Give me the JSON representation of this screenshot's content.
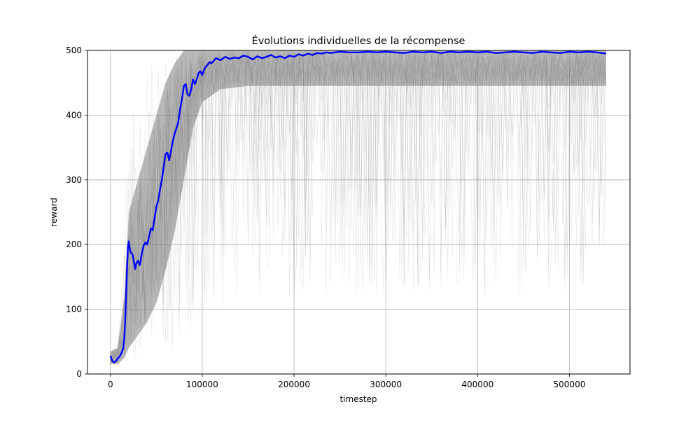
{
  "chart_data": {
    "type": "line",
    "title": "Évolutions individuelles de la récompense",
    "xlabel": "timestep",
    "ylabel": "reward",
    "xlim": [
      -25000,
      566000
    ],
    "ylim": [
      0,
      500
    ],
    "x_ticks": [
      0,
      100000,
      200000,
      300000,
      400000,
      500000
    ],
    "x_tick_labels": [
      "0",
      "100000",
      "200000",
      "300000",
      "400000",
      "500000"
    ],
    "y_ticks": [
      0,
      100,
      200,
      300,
      400,
      500
    ],
    "y_tick_labels": [
      "0",
      "100",
      "200",
      "300",
      "400",
      "500"
    ],
    "grid": true,
    "series": [
      {
        "role": "individual runs",
        "color": "#808080",
        "band": {
          "x": [
            0,
            8000,
            15000,
            20000,
            30000,
            40000,
            50000,
            60000,
            70000,
            80000,
            90000,
            100000,
            120000,
            150000,
            200000,
            300000,
            400000,
            540000
          ],
          "upper": [
            40,
            45,
            200,
            400,
            440,
            470,
            490,
            500,
            500,
            500,
            500,
            500,
            500,
            500,
            500,
            500,
            500,
            500
          ],
          "dense_upper": [
            35,
            40,
            120,
            250,
            300,
            350,
            400,
            450,
            480,
            500,
            500,
            500,
            500,
            500,
            500,
            500,
            500,
            500
          ],
          "dense_lower": [
            15,
            15,
            25,
            40,
            60,
            80,
            110,
            160,
            220,
            300,
            380,
            420,
            440,
            445,
            445,
            445,
            445,
            445
          ],
          "lower": [
            10,
            10,
            15,
            15,
            15,
            20,
            20,
            25,
            30,
            40,
            60,
            80,
            100,
            120,
            120,
            120,
            120,
            120
          ]
        }
      },
      {
        "role": "mean",
        "color": "#0000ff",
        "x": [
          0,
          2000,
          4000,
          6000,
          8000,
          10000,
          12000,
          14000,
          15000,
          16000,
          17000,
          18000,
          19000,
          20000,
          21000,
          22000,
          24000,
          26000,
          27000,
          28000,
          30000,
          32000,
          34000,
          36000,
          38000,
          40000,
          42000,
          44000,
          46000,
          48000,
          50000,
          52000,
          54000,
          56000,
          58000,
          60000,
          62000,
          64000,
          66000,
          68000,
          70000,
          72000,
          74000,
          76000,
          78000,
          80000,
          82000,
          84000,
          86000,
          88000,
          90000,
          92000,
          94000,
          96000,
          98000,
          100000,
          102000,
          104000,
          106000,
          108000,
          110000,
          115000,
          120000,
          125000,
          130000,
          135000,
          140000,
          145000,
          150000,
          155000,
          160000,
          165000,
          170000,
          175000,
          180000,
          185000,
          190000,
          195000,
          200000,
          205000,
          210000,
          215000,
          220000,
          225000,
          230000,
          235000,
          240000,
          250000,
          260000,
          270000,
          280000,
          290000,
          300000,
          310000,
          320000,
          330000,
          340000,
          350000,
          360000,
          370000,
          380000,
          390000,
          400000,
          410000,
          420000,
          430000,
          440000,
          450000,
          460000,
          470000,
          480000,
          490000,
          500000,
          510000,
          520000,
          530000,
          540000
        ],
        "values": [
          28,
          20,
          18,
          20,
          24,
          27,
          32,
          40,
          55,
          80,
          120,
          160,
          195,
          205,
          195,
          188,
          185,
          170,
          162,
          170,
          175,
          168,
          185,
          198,
          203,
          200,
          212,
          225,
          222,
          240,
          258,
          268,
          285,
          300,
          320,
          340,
          342,
          330,
          345,
          360,
          372,
          380,
          390,
          410,
          425,
          445,
          448,
          432,
          430,
          440,
          455,
          448,
          455,
          465,
          468,
          462,
          470,
          475,
          478,
          482,
          480,
          488,
          485,
          490,
          487,
          489,
          488,
          492,
          490,
          486,
          491,
          488,
          490,
          493,
          489,
          491,
          488,
          492,
          490,
          494,
          492,
          495,
          493,
          496,
          495,
          497,
          496,
          498,
          497,
          497,
          498,
          497,
          498,
          497,
          496,
          498,
          497,
          498,
          496,
          498,
          497,
          498,
          497,
          498,
          496,
          497,
          498,
          497,
          496,
          498,
          497,
          496,
          498,
          497,
          498,
          497,
          495
        ]
      }
    ]
  }
}
